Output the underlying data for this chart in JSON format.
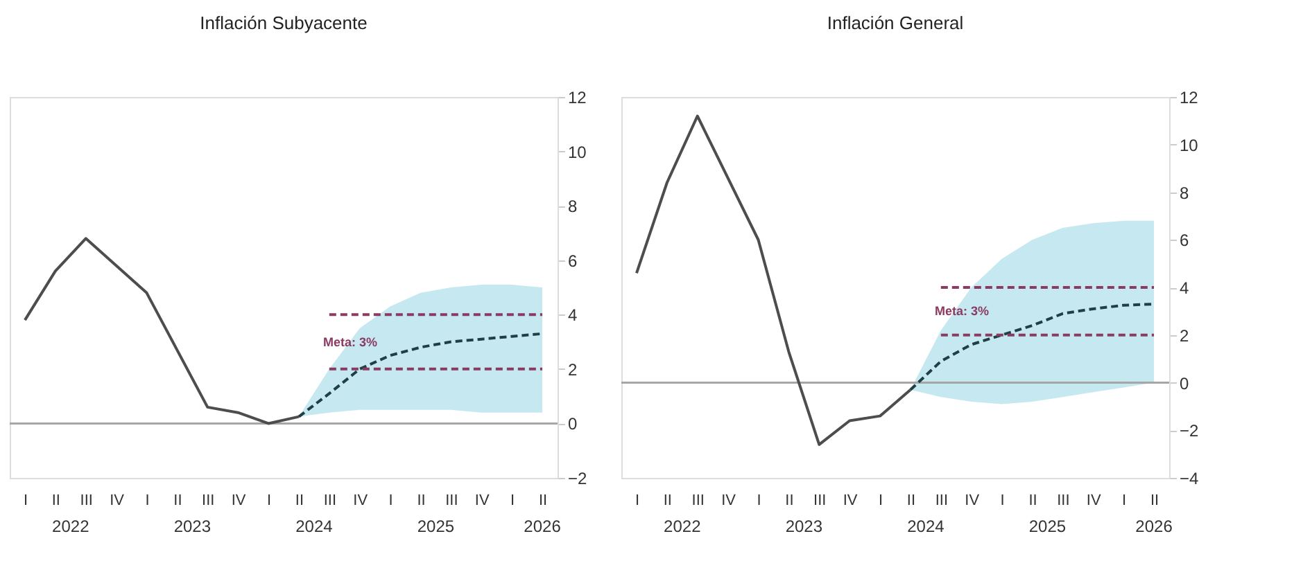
{
  "chart_data": [
    {
      "type": "line",
      "title": "Inflación Subyacente",
      "categories": [
        "I",
        "II",
        "III",
        "IV",
        "I",
        "II",
        "III",
        "IV",
        "I",
        "II",
        "III",
        "IV",
        "I",
        "II",
        "III",
        "IV",
        "I",
        "II"
      ],
      "series": [
        {
          "color": "#4d4d4d",
          "line_style": "solid",
          "values": [
            3.8,
            5.6,
            6.8,
            5.8,
            4.8,
            2.7,
            0.6,
            0.4,
            0.0,
            0.25,
            null,
            null,
            null,
            null,
            null,
            null,
            null,
            null
          ]
        },
        {
          "color": "#1f3f44",
          "line_style": "dashed",
          "values": [
            null,
            null,
            null,
            null,
            null,
            null,
            null,
            null,
            null,
            0.25,
            1.1,
            2.0,
            2.5,
            2.8,
            3.0,
            3.1,
            3.2,
            3.3
          ],
          "lower": [
            null,
            null,
            null,
            null,
            null,
            null,
            null,
            null,
            null,
            0.25,
            0.4,
            0.5,
            0.5,
            0.5,
            0.5,
            0.4,
            0.4,
            0.4
          ],
          "upper": [
            null,
            null,
            null,
            null,
            null,
            null,
            null,
            null,
            null,
            0.25,
            2.0,
            3.5,
            4.3,
            4.8,
            5.0,
            5.1,
            5.1,
            5.0
          ]
        },
        {
          "color": "#8b3a62",
          "line_style": "dashed",
          "values": [
            null,
            null,
            null,
            null,
            null,
            null,
            null,
            null,
            null,
            null,
            4,
            4,
            4,
            4,
            4,
            4,
            4,
            4
          ]
        },
        {
          "color": "#8b3a62",
          "line_style": "dashed",
          "values": [
            null,
            null,
            null,
            null,
            null,
            null,
            null,
            null,
            null,
            null,
            2,
            2,
            2,
            2,
            2,
            2,
            2,
            2
          ]
        }
      ],
      "ref_lines": [
        {
          "axis": "y",
          "value": 0,
          "color": "#a6a6a6",
          "line_style": "solid"
        }
      ],
      "annotations": [
        "Meta: 3%",
        "2022",
        "2023",
        "2024",
        "2025",
        "2026"
      ],
      "ylim": [
        -2,
        12
      ],
      "yticks": [
        -2,
        0,
        2,
        4,
        6,
        8,
        10,
        12
      ],
      "grid": false
    },
    {
      "type": "line",
      "title": "Inflación General",
      "categories": [
        "I",
        "II",
        "III",
        "IV",
        "I",
        "II",
        "III",
        "IV",
        "I",
        "II",
        "III",
        "IV",
        "I",
        "II",
        "III",
        "IV",
        "I",
        "II"
      ],
      "series": [
        {
          "color": "#4d4d4d",
          "line_style": "solid",
          "values": [
            4.6,
            8.4,
            11.2,
            8.6,
            6.0,
            1.3,
            -2.6,
            -1.6,
            -1.4,
            -0.3,
            null,
            null,
            null,
            null,
            null,
            null,
            null,
            null
          ]
        },
        {
          "color": "#1f3f44",
          "line_style": "dashed",
          "values": [
            null,
            null,
            null,
            null,
            null,
            null,
            null,
            null,
            null,
            -0.3,
            0.9,
            1.6,
            2.0,
            2.4,
            2.9,
            3.1,
            3.25,
            3.3
          ],
          "lower": [
            null,
            null,
            null,
            null,
            null,
            null,
            null,
            null,
            null,
            -0.3,
            -0.6,
            -0.8,
            -0.9,
            -0.8,
            -0.6,
            -0.4,
            -0.2,
            0.0
          ],
          "upper": [
            null,
            null,
            null,
            null,
            null,
            null,
            null,
            null,
            null,
            -0.3,
            2.2,
            4.0,
            5.2,
            6.0,
            6.5,
            6.7,
            6.8,
            6.8
          ]
        },
        {
          "color": "#8b3a62",
          "line_style": "dashed",
          "values": [
            null,
            null,
            null,
            null,
            null,
            null,
            null,
            null,
            null,
            null,
            4,
            4,
            4,
            4,
            4,
            4,
            4,
            4
          ]
        },
        {
          "color": "#8b3a62",
          "line_style": "dashed",
          "values": [
            null,
            null,
            null,
            null,
            null,
            null,
            null,
            null,
            null,
            null,
            2,
            2,
            2,
            2,
            2,
            2,
            2,
            2
          ]
        }
      ],
      "ref_lines": [
        {
          "axis": "y",
          "value": 0,
          "color": "#a6a6a6",
          "line_style": "solid"
        }
      ],
      "annotations": [
        "Meta: 3%",
        "2022",
        "2023",
        "2024",
        "2025",
        "2026"
      ],
      "ylim": [
        -4,
        12
      ],
      "yticks": [
        -4,
        -2,
        0,
        2,
        4,
        6,
        8,
        10,
        12
      ],
      "grid": false
    }
  ]
}
